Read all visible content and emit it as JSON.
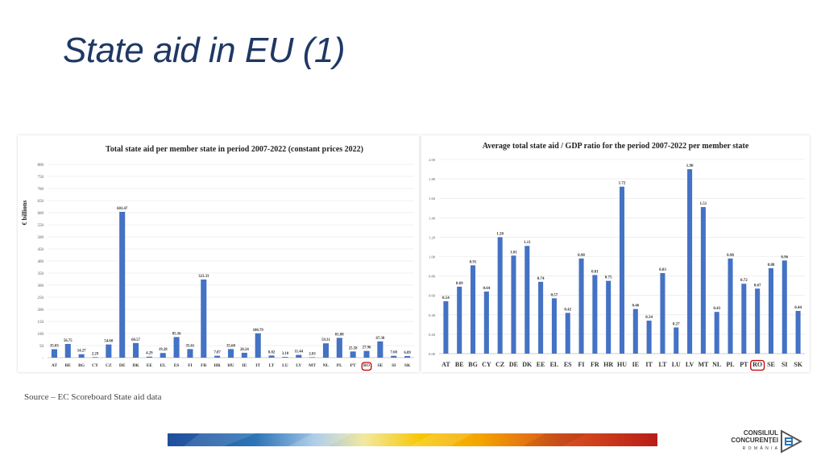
{
  "slide": {
    "title": "State aid in EU (1)",
    "source": "Source – EC Scoreboard State aid data",
    "logo": {
      "line1": "CONSILIUL",
      "line2": "CONCURENȚEI",
      "line3": "R O M Â N I A"
    }
  },
  "colors": {
    "bar": "#4472c4",
    "title": "#1f3864",
    "highlight": "#c00000",
    "grid": "#e3e3e3"
  },
  "chart_data": [
    {
      "type": "bar",
      "title": "Total state aid per member state in period 2007-2022 (constant prices 2022)",
      "xlabel": "",
      "ylabel": "€ billions",
      "ylim": [
        0,
        800
      ],
      "yticks": [
        0,
        50,
        100,
        150,
        200,
        250,
        300,
        350,
        400,
        450,
        500,
        550,
        600,
        650,
        700,
        750,
        800
      ],
      "ytick_labels": [
        "-",
        "50",
        "100",
        "150",
        "200",
        "250",
        "300",
        "350",
        "400",
        "450",
        "500",
        "550",
        "600",
        "650",
        "700",
        "750",
        "800"
      ],
      "grid": true,
      "categories": [
        "AT",
        "BE",
        "BG",
        "CY",
        "CZ",
        "DE",
        "DK",
        "EE",
        "EL",
        "ES",
        "FI",
        "FR",
        "HR",
        "HU",
        "IE",
        "IT",
        "LT",
        "LU",
        "LV",
        "MT",
        "NL",
        "PL",
        "PT",
        "RO",
        "SE",
        "SI",
        "SK"
      ],
      "values": [
        35.03,
        56.75,
        14.27,
        2.29,
        54.6,
        603.47,
        60.57,
        4.29,
        19.28,
        85.36,
        35.61,
        323.33,
        7.87,
        35.68,
        20.24,
        100.79,
        8.82,
        3.1,
        11.44,
        2.03,
        59.31,
        81.88,
        25.58,
        27.96,
        67.38,
        7.68,
        6.89
      ],
      "data_labels": [
        "35.03",
        "56.75",
        "14.27",
        "2.29",
        "54.60",
        "603.47",
        "60.57",
        "4.29",
        "19.28",
        "85.36",
        "35.61",
        "323.33",
        "7.87",
        "35.68",
        "20.24",
        "100.79",
        "8.82",
        "3.10",
        "11.44",
        "2.03",
        "59.31",
        "81.88",
        "25.58",
        "27.96",
        "67.38",
        "7.68",
        "6.89"
      ],
      "highlight": "RO"
    },
    {
      "type": "bar",
      "title": "Average total state aid / GDP ratio for the period 2007-2022 per member state",
      "xlabel": "",
      "ylabel": "",
      "ylim": [
        0,
        2.0
      ],
      "yticks": [
        0,
        0.2,
        0.4,
        0.6,
        0.8,
        1.0,
        1.2,
        1.4,
        1.6,
        1.8,
        2.0
      ],
      "ytick_labels": [
        "0.00",
        "0.20",
        "0.40",
        "0.60",
        "0.80",
        "1.00",
        "1.20",
        "1.40",
        "1.60",
        "1.80",
        "2.00"
      ],
      "grid": true,
      "categories": [
        "AT",
        "BE",
        "BG",
        "CY",
        "CZ",
        "DE",
        "DK",
        "EE",
        "EL",
        "ES",
        "FI",
        "FR",
        "HR",
        "HU",
        "IE",
        "IT",
        "LT",
        "LU",
        "LV",
        "MT",
        "NL",
        "PL",
        "PT",
        "RO",
        "SE",
        "SI",
        "SK"
      ],
      "values": [
        0.54,
        0.69,
        0.91,
        0.64,
        1.2,
        1.01,
        1.11,
        0.74,
        0.57,
        0.42,
        0.98,
        0.81,
        0.75,
        1.72,
        0.46,
        0.34,
        0.83,
        0.27,
        1.9,
        1.51,
        0.43,
        0.98,
        0.72,
        0.67,
        0.88,
        0.96,
        0.44
      ],
      "data_labels": [
        "0.54",
        "0.69",
        "0.91",
        "0.64",
        "1.20",
        "1.01",
        "1.11",
        "0.74",
        "0.57",
        "0.42",
        "0.98",
        "0.81",
        "0.75",
        "1.72",
        "0.46",
        "0.34",
        "0.83",
        "0.27",
        "1.90",
        "1.51",
        "0.43",
        "0.98",
        "0.72",
        "0.67",
        "0.88",
        "0.96",
        "0.44"
      ],
      "highlight": "RO"
    }
  ]
}
